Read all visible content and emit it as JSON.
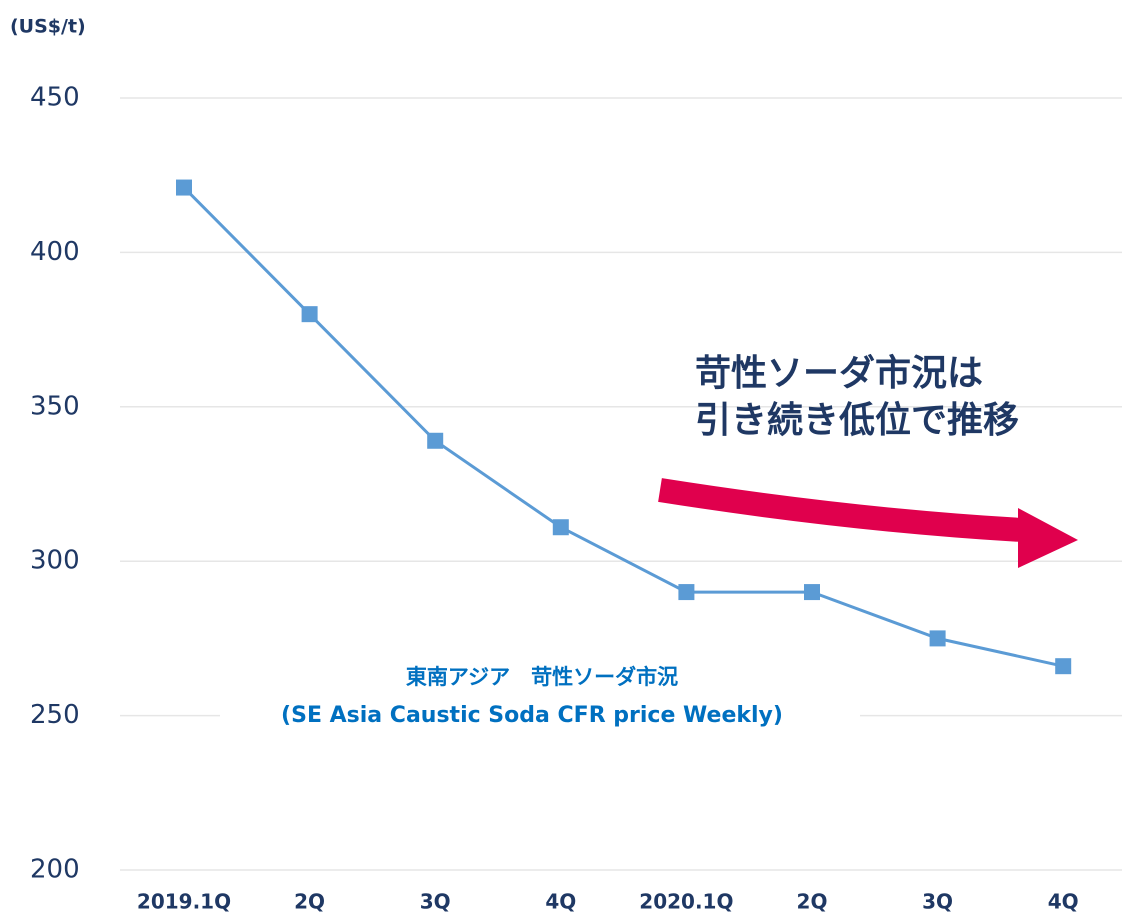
{
  "chart_data": {
    "type": "line",
    "unit_label": "(US$/t)",
    "categories": [
      "2019.1Q",
      "2Q",
      "3Q",
      "4Q",
      "2020.1Q",
      "2Q",
      "3Q",
      "4Q"
    ],
    "series": [
      {
        "name": "東南アジア　苛性ソーダ市況",
        "color": "#5b9bd5",
        "values": [
          421,
          380,
          339,
          311,
          290,
          290,
          275,
          266
        ]
      }
    ],
    "subtitle": [
      "東南アジア　苛性ソーダ市況",
      "(SE Asia Caustic Soda CFR price Weekly)"
    ],
    "annotation": [
      "苛性ソーダ市況は",
      "引き続き低位で推移"
    ],
    "ylim": [
      200,
      450
    ],
    "yticks": [
      200,
      250,
      300,
      350,
      400,
      450
    ],
    "grid": true
  }
}
